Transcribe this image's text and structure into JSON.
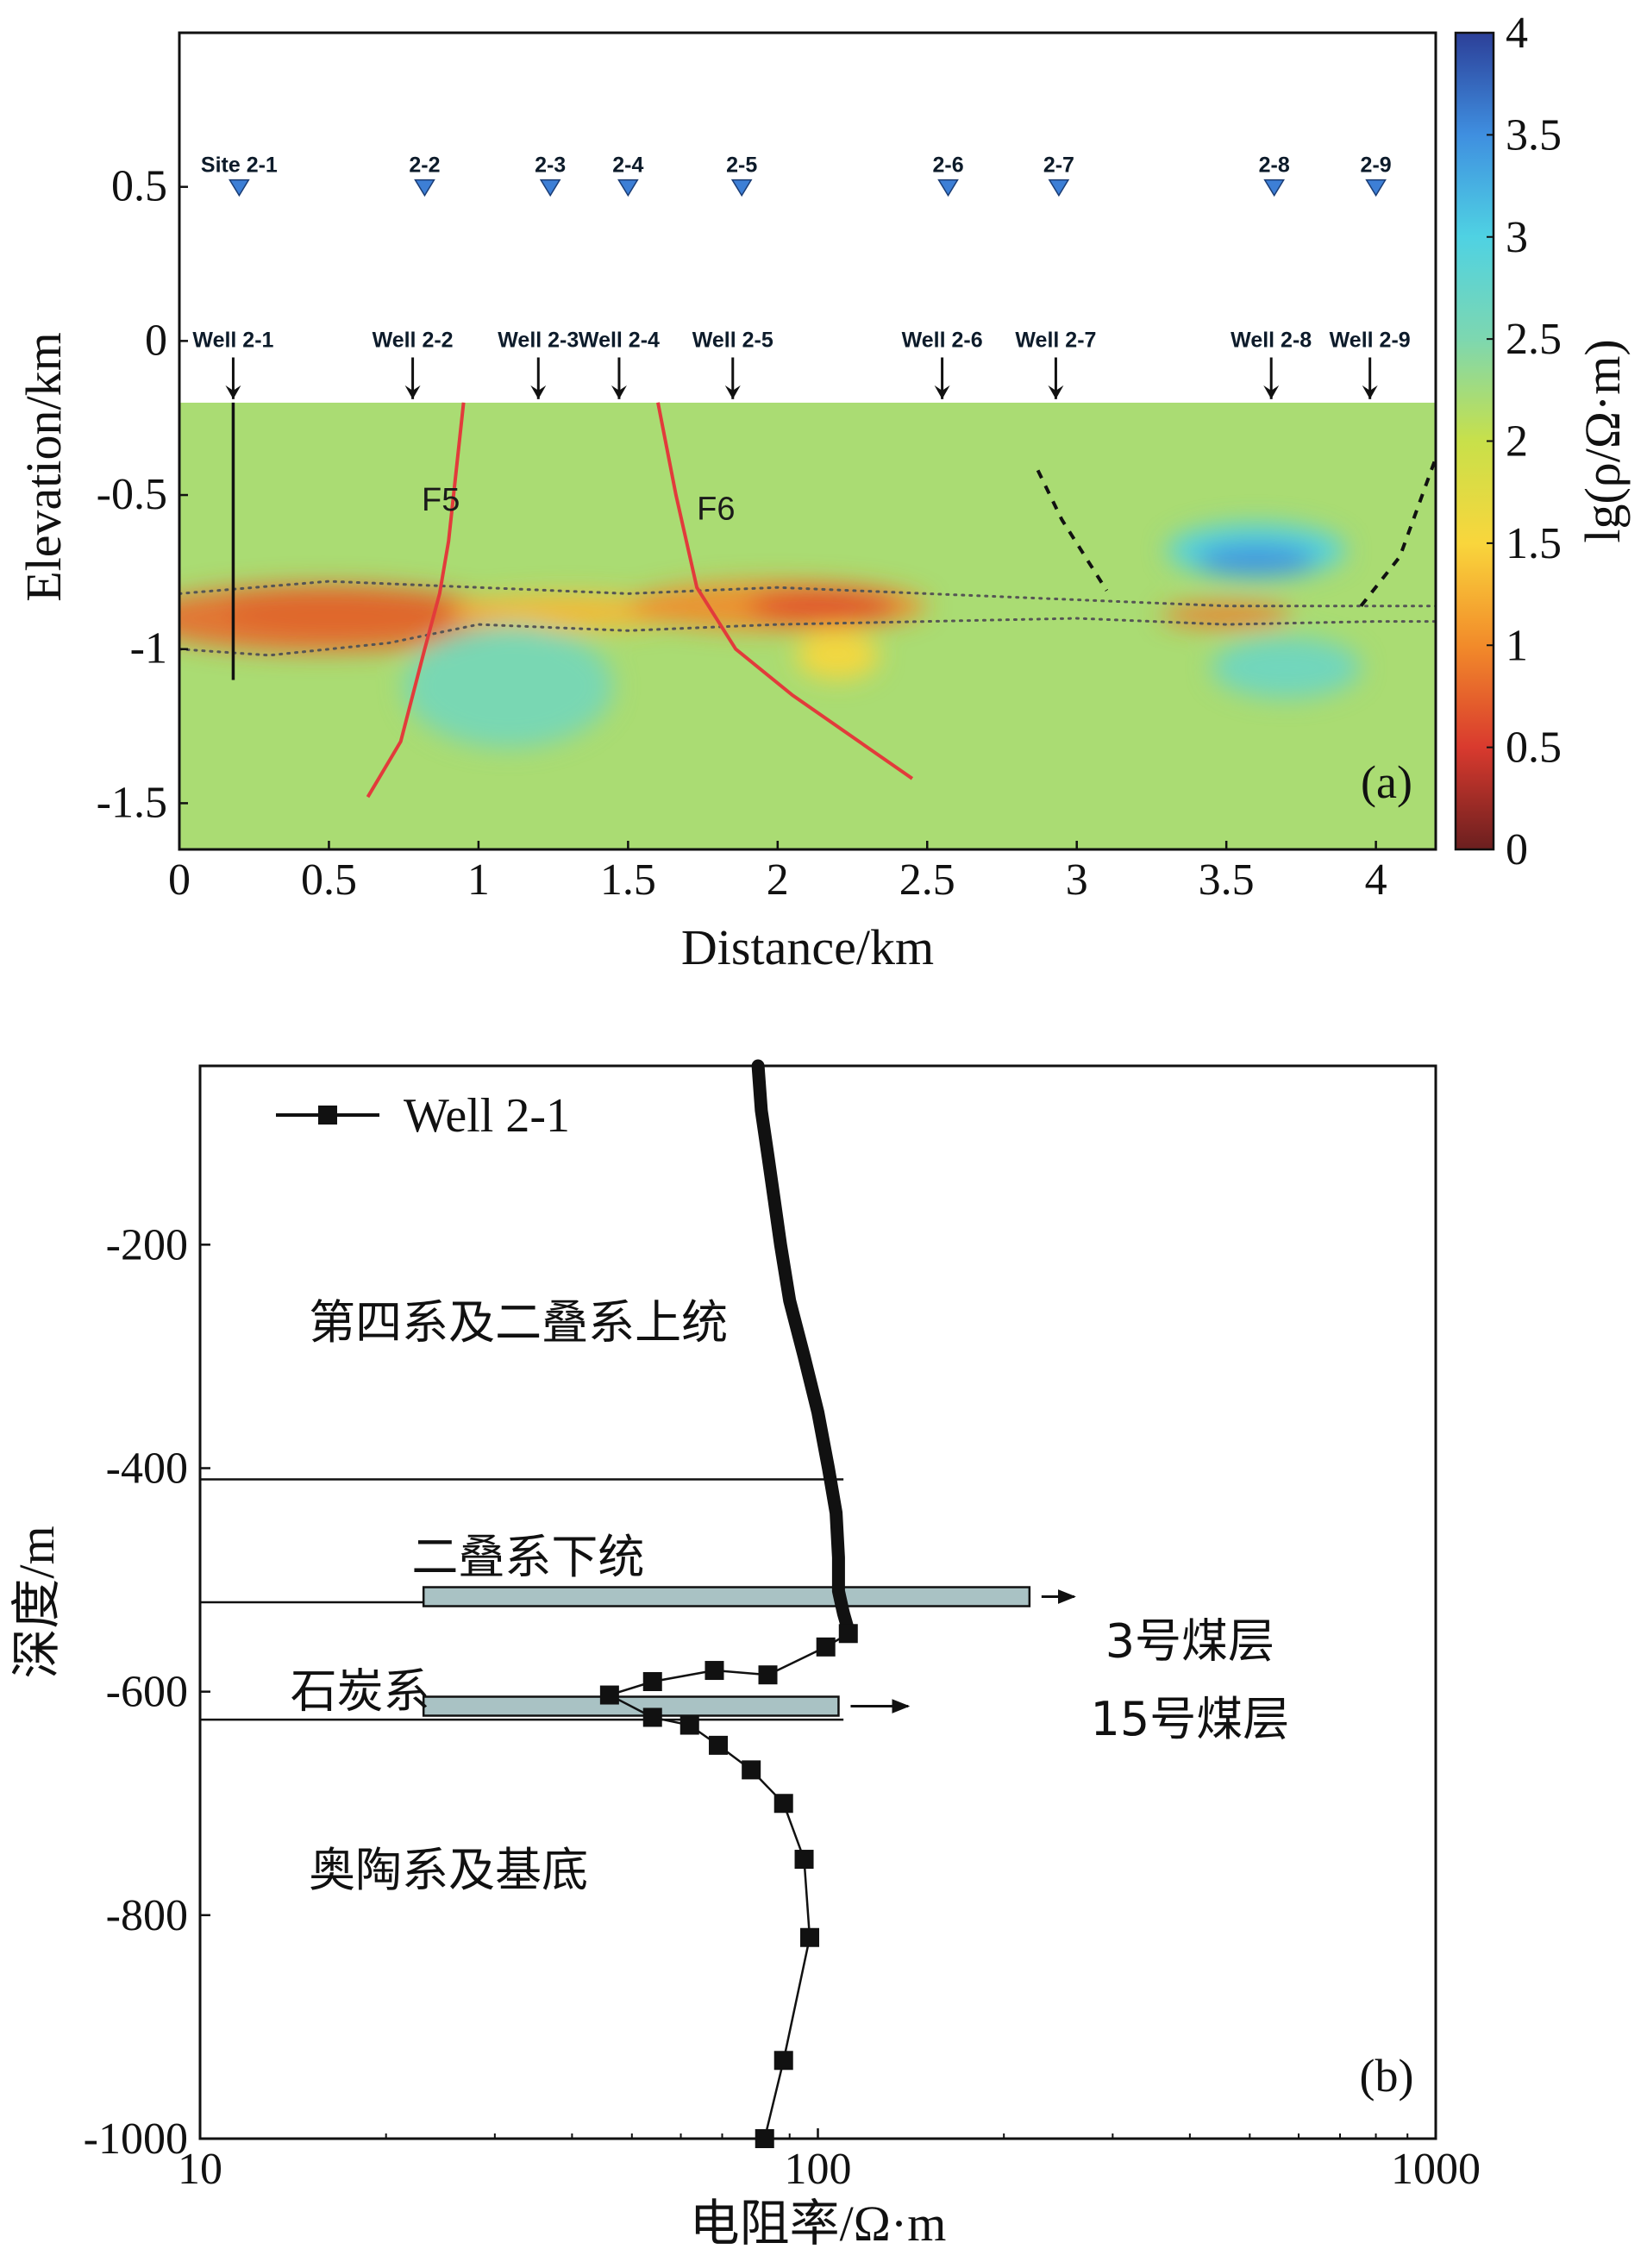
{
  "chart_data": [
    {
      "panel": "(a)",
      "type": "heatmap",
      "xlabel": "Distance/km",
      "ylabel": "Elevation/km",
      "xlim": [
        0,
        4.2
      ],
      "ylim": [
        -1.65,
        1.0
      ],
      "x_ticks": [
        "0",
        "0.5",
        "1",
        "1.5",
        "2",
        "2.5",
        "3",
        "3.5",
        "4"
      ],
      "y_ticks": [
        "0.5",
        "0",
        "-0.5",
        "-1",
        "-1.5"
      ],
      "colorbar": {
        "label": "lg(ρ/Ω·m)",
        "range": [
          0,
          4
        ],
        "ticks": [
          "0",
          "0.5",
          "1",
          "1.5",
          "2",
          "2.5",
          "3",
          "3.5",
          "4"
        ],
        "colors": [
          "#6b1f1f",
          "#d93a2e",
          "#f28b2a",
          "#f9d63c",
          "#c8e04a",
          "#7dd7b0",
          "#4fd2e3",
          "#3f8fe0",
          "#2c3f98"
        ]
      },
      "data_top_elevation": -0.2,
      "background_log_resistivity": 2.2,
      "sites": [
        {
          "label": "Site 2-1",
          "x": 0.2
        },
        {
          "label": "2-2",
          "x": 0.82
        },
        {
          "label": "2-3",
          "x": 1.24
        },
        {
          "label": "2-4",
          "x": 1.5
        },
        {
          "label": "2-5",
          "x": 1.88
        },
        {
          "label": "2-6",
          "x": 2.57
        },
        {
          "label": "2-7",
          "x": 2.94
        },
        {
          "label": "2-8",
          "x": 3.66
        },
        {
          "label": "2-9",
          "x": 4.0
        }
      ],
      "site_elevation": 0.5,
      "wells": [
        {
          "label": "Well 2-1",
          "x": 0.18
        },
        {
          "label": "Well 2-2",
          "x": 0.78
        },
        {
          "label": "Well 2-3",
          "x": 1.2
        },
        {
          "label": "Well 2-4",
          "x": 1.47
        },
        {
          "label": "Well 2-5",
          "x": 1.85
        },
        {
          "label": "Well 2-6",
          "x": 2.55
        },
        {
          "label": "Well 2-7",
          "x": 2.93
        },
        {
          "label": "Well 2-8",
          "x": 3.65
        },
        {
          "label": "Well 2-9",
          "x": 3.98
        }
      ],
      "well_label_elevation": -0.02,
      "well_trace": {
        "x": 0.18,
        "from": -0.2,
        "to": -1.1
      },
      "faults": [
        {
          "label": "F5",
          "points": [
            [
              0.95,
              -0.2
            ],
            [
              0.9,
              -0.65
            ],
            [
              0.87,
              -0.82
            ],
            [
              0.82,
              -1.0
            ],
            [
              0.74,
              -1.3
            ],
            [
              0.63,
              -1.48
            ]
          ],
          "label_at": [
            0.81,
            -0.55
          ]
        },
        {
          "label": "F6",
          "points": [
            [
              1.6,
              -0.2
            ],
            [
              1.66,
              -0.5
            ],
            [
              1.73,
              -0.8
            ],
            [
              1.86,
              -1.0
            ],
            [
              2.05,
              -1.15
            ],
            [
              2.45,
              -1.42
            ]
          ],
          "label_at": [
            1.73,
            -0.58
          ]
        }
      ],
      "dashed_curves": [
        [
          [
            2.87,
            -0.42
          ],
          [
            2.95,
            -0.58
          ],
          [
            3.1,
            -0.81
          ]
        ],
        [
          [
            3.95,
            -0.86
          ],
          [
            4.08,
            -0.7
          ],
          [
            4.2,
            -0.38
          ]
        ]
      ],
      "dotted_boundaries": [
        [
          [
            0,
            -0.82
          ],
          [
            0.5,
            -0.78
          ],
          [
            1.0,
            -0.8
          ],
          [
            1.5,
            -0.82
          ],
          [
            2.0,
            -0.8
          ],
          [
            2.5,
            -0.82
          ],
          [
            3.0,
            -0.84
          ],
          [
            3.5,
            -0.86
          ],
          [
            4.0,
            -0.86
          ],
          [
            4.2,
            -0.86
          ]
        ],
        [
          [
            0,
            -1.0
          ],
          [
            0.3,
            -1.02
          ],
          [
            0.7,
            -0.98
          ],
          [
            1.0,
            -0.92
          ],
          [
            1.5,
            -0.94
          ],
          [
            2.0,
            -0.92
          ],
          [
            2.5,
            -0.91
          ],
          [
            3.0,
            -0.9
          ],
          [
            3.5,
            -0.92
          ],
          [
            4.0,
            -0.91
          ],
          [
            4.2,
            -0.91
          ]
        ]
      ],
      "anomalies": [
        {
          "x": 0.55,
          "y": -0.88,
          "rx": 0.4,
          "ry": 0.07,
          "value": 0.2
        },
        {
          "x": 0.48,
          "y": -0.9,
          "rx": 0.62,
          "ry": 0.11,
          "value": 0.8
        },
        {
          "x": 1.3,
          "y": -0.88,
          "rx": 0.4,
          "ry": 0.06,
          "value": 1.3
        },
        {
          "x": 2.0,
          "y": -0.86,
          "rx": 0.5,
          "ry": 0.08,
          "value": 1.0
        },
        {
          "x": 2.15,
          "y": -0.86,
          "rx": 0.25,
          "ry": 0.05,
          "value": 0.6
        },
        {
          "x": 2.2,
          "y": -1.02,
          "rx": 0.14,
          "ry": 0.08,
          "value": 1.5
        },
        {
          "x": 3.5,
          "y": -0.89,
          "rx": 0.22,
          "ry": 0.04,
          "value": 0.9
        },
        {
          "x": 3.6,
          "y": -0.68,
          "rx": 0.3,
          "ry": 0.09,
          "value": 3.0
        },
        {
          "x": 3.6,
          "y": -0.71,
          "rx": 0.2,
          "ry": 0.05,
          "value": 3.5
        },
        {
          "x": 1.1,
          "y": -1.12,
          "rx": 0.35,
          "ry": 0.2,
          "value": 2.6
        },
        {
          "x": 3.7,
          "y": -1.06,
          "rx": 0.25,
          "ry": 0.1,
          "value": 2.7
        }
      ]
    },
    {
      "panel": "(b)",
      "type": "line",
      "xscale": "log",
      "xlabel": "电阻率/Ω·m",
      "ylabel": "深度/m",
      "xlim": [
        10,
        1000
      ],
      "ylim": [
        -1000,
        -40
      ],
      "x_ticks": [
        "10",
        "100",
        "1000"
      ],
      "y_ticks": [
        "-200",
        "-400",
        "-600",
        "-800",
        "-1000"
      ],
      "series": [
        {
          "name": "Well 2-1",
          "dense_log": [
            [
              80,
              -40
            ],
            [
              81,
              -80
            ],
            [
              83,
              -120
            ],
            [
              85,
              -160
            ],
            [
              87,
              -200
            ],
            [
              90,
              -250
            ],
            [
              95,
              -300
            ],
            [
              100,
              -350
            ],
            [
              104,
              -400
            ],
            [
              107,
              -440
            ],
            [
              108,
              -480
            ],
            [
              108,
              -510
            ],
            [
              110,
              -530
            ],
            [
              112,
              -545
            ]
          ],
          "markers": [
            [
              112,
              -548
            ],
            [
              103,
              -560
            ],
            [
              83,
              -585
            ],
            [
              68,
              -581
            ],
            [
              54,
              -591
            ],
            [
              46,
              -603
            ],
            [
              54,
              -623
            ],
            [
              62,
              -630
            ],
            [
              69,
              -648
            ],
            [
              78,
              -670
            ],
            [
              88,
              -700
            ],
            [
              95,
              -750
            ],
            [
              97,
              -820
            ],
            [
              88,
              -930
            ],
            [
              82,
              -1000
            ]
          ]
        }
      ],
      "layer_boundaries": [
        -410,
        -520,
        -625
      ],
      "coal_seams": [
        {
          "label": "3号煤层",
          "x_from": 23,
          "x_to": 220,
          "depth": -515,
          "arrow_to": 260
        },
        {
          "label": "15号煤层",
          "x_from": 23,
          "x_to": 108,
          "depth": -613,
          "arrow_to": 140
        }
      ],
      "strata_labels": [
        {
          "label": "第四系及二叠系上统",
          "x": 15,
          "depth": -270
        },
        {
          "label": "二叠系下统",
          "x": 22,
          "depth": -480
        },
        {
          "label": "石炭系",
          "x": 14,
          "depth": -600
        },
        {
          "label": "奥陶系及基底",
          "x": 15,
          "depth": -760
        }
      ],
      "coal_label_positions": [
        {
          "label": "3号煤层",
          "x": 400,
          "depth": -555
        },
        {
          "label": "15号煤层",
          "x": 400,
          "depth": -625
        }
      ]
    }
  ],
  "panel_a": {
    "letter": "(a)",
    "xlabel": "Distance/km",
    "ylabel": "Elevation/km",
    "colorbar_label": "lg(ρ/Ω·m)",
    "fault_labels": [
      "F5",
      "F6"
    ]
  },
  "panel_b": {
    "letter": "(b)",
    "xlabel": "电阻率/Ω·m",
    "ylabel": "深度/m",
    "legend": "Well 2-1",
    "strata": [
      "第四系及二叠系上统",
      "二叠系下统",
      "石炭系",
      "奥陶系及基底"
    ],
    "coal_seams": [
      "3号煤层",
      "15号煤层"
    ]
  }
}
